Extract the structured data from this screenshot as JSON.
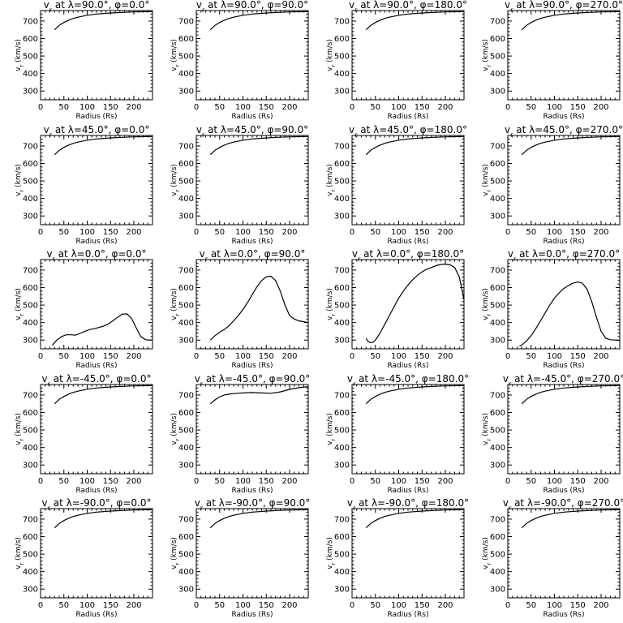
{
  "chart_data": {
    "type": "line",
    "xlabel": "Radius (Rs)",
    "ylabel": "v_r (km/s)",
    "xlim": [
      0,
      240
    ],
    "ylim": [
      250,
      760
    ],
    "xticks": [
      0,
      50,
      100,
      150,
      200
    ],
    "yticks": [
      300,
      400,
      500,
      600,
      700
    ],
    "grid": false,
    "panels": [
      {
        "title": "v_r at λ=90.0°, φ=0.0°",
        "x": [
          30,
          40,
          50,
          60,
          70,
          80,
          100,
          120,
          150,
          180,
          200,
          240
        ],
        "y": [
          650,
          675,
          692,
          705,
          715,
          722,
          733,
          740,
          746,
          750,
          752,
          754
        ]
      },
      {
        "title": "v_r at λ=90.0°, φ=90.0°",
        "x": [
          30,
          40,
          50,
          60,
          70,
          80,
          100,
          120,
          150,
          180,
          200,
          240
        ],
        "y": [
          650,
          675,
          692,
          705,
          715,
          722,
          733,
          740,
          746,
          750,
          752,
          754
        ]
      },
      {
        "title": "v_r at λ=90.0°, φ=180.0°",
        "x": [
          30,
          40,
          50,
          60,
          70,
          80,
          100,
          120,
          150,
          180,
          200,
          240
        ],
        "y": [
          650,
          675,
          692,
          705,
          715,
          722,
          733,
          740,
          746,
          750,
          752,
          754
        ]
      },
      {
        "title": "v_r at λ=90.0°, φ=270.0°",
        "x": [
          30,
          40,
          50,
          60,
          70,
          80,
          100,
          120,
          150,
          180,
          200,
          240
        ],
        "y": [
          650,
          675,
          692,
          705,
          715,
          722,
          733,
          740,
          746,
          750,
          752,
          754
        ]
      },
      {
        "title": "v_r at λ=45.0°, φ=0.0°",
        "x": [
          30,
          40,
          50,
          60,
          70,
          80,
          100,
          120,
          150,
          180,
          200,
          240
        ],
        "y": [
          650,
          675,
          692,
          705,
          715,
          722,
          733,
          740,
          746,
          750,
          752,
          754
        ]
      },
      {
        "title": "v_r at λ=45.0°, φ=90.0°",
        "x": [
          30,
          40,
          50,
          60,
          70,
          80,
          100,
          120,
          150,
          180,
          200,
          240
        ],
        "y": [
          650,
          675,
          692,
          705,
          715,
          722,
          733,
          740,
          746,
          750,
          752,
          754
        ]
      },
      {
        "title": "v_r at λ=45.0°, φ=180.0°",
        "x": [
          30,
          40,
          50,
          60,
          70,
          80,
          100,
          120,
          150,
          180,
          200,
          240
        ],
        "y": [
          650,
          675,
          692,
          705,
          715,
          722,
          733,
          740,
          746,
          750,
          752,
          754
        ]
      },
      {
        "title": "v_r at λ=45.0°, φ=270.0°",
        "x": [
          30,
          40,
          50,
          60,
          70,
          80,
          100,
          120,
          150,
          180,
          200,
          240
        ],
        "y": [
          650,
          675,
          692,
          705,
          715,
          722,
          733,
          740,
          746,
          750,
          752,
          754
        ]
      },
      {
        "title": "v_r at λ=0.0°, φ=0.0°",
        "x": [
          25,
          35,
          45,
          55,
          65,
          75,
          85,
          95,
          105,
          115,
          125,
          135,
          145,
          155,
          165,
          175,
          185,
          195,
          205,
          215,
          225,
          235,
          240
        ],
        "y": [
          270,
          300,
          320,
          330,
          330,
          328,
          338,
          350,
          360,
          365,
          372,
          380,
          392,
          410,
          430,
          448,
          450,
          425,
          370,
          320,
          302,
          300,
          300
        ]
      },
      {
        "title": "v_r at λ=0.0°, φ=90.0°",
        "x": [
          30,
          40,
          50,
          60,
          70,
          80,
          90,
          100,
          110,
          120,
          130,
          140,
          150,
          160,
          170,
          180,
          190,
          200,
          210,
          220,
          230,
          240
        ],
        "y": [
          300,
          325,
          345,
          360,
          382,
          410,
          440,
          475,
          515,
          560,
          605,
          640,
          662,
          665,
          640,
          580,
          500,
          440,
          420,
          410,
          405,
          400
        ]
      },
      {
        "title": "v_r at λ=0.0°, φ=180.0°",
        "x": [
          30,
          35,
          40,
          45,
          50,
          60,
          70,
          80,
          90,
          100,
          110,
          120,
          130,
          140,
          150,
          160,
          170,
          180,
          190,
          200,
          210,
          220,
          230,
          240
        ],
        "y": [
          310,
          290,
          285,
          287,
          300,
          340,
          390,
          440,
          490,
          540,
          580,
          615,
          645,
          670,
          690,
          705,
          715,
          725,
          732,
          734,
          730,
          715,
          660,
          530
        ]
      },
      {
        "title": "v_r at λ=0.0°, φ=270.0°",
        "x": [
          25,
          30,
          40,
          50,
          60,
          70,
          80,
          90,
          100,
          110,
          120,
          130,
          140,
          150,
          160,
          170,
          180,
          190,
          200,
          210,
          220,
          230,
          240
        ],
        "y": [
          265,
          272,
          295,
          325,
          365,
          410,
          455,
          500,
          540,
          570,
          595,
          612,
          625,
          632,
          625,
          590,
          520,
          430,
          350,
          310,
          302,
          300,
          298
        ]
      },
      {
        "title": "v_r at λ=-45.0°, φ=0.0°",
        "x": [
          30,
          40,
          50,
          60,
          70,
          80,
          100,
          120,
          150,
          180,
          200,
          240
        ],
        "y": [
          650,
          675,
          692,
          705,
          715,
          722,
          733,
          740,
          746,
          750,
          752,
          754
        ]
      },
      {
        "title": "v_r at λ=-45.0°, φ=90.0°",
        "x": [
          30,
          40,
          50,
          60,
          70,
          80,
          90,
          100,
          120,
          140,
          160,
          180,
          200,
          220,
          240
        ],
        "y": [
          650,
          672,
          690,
          700,
          705,
          708,
          710,
          712,
          714,
          712,
          710,
          718,
          732,
          742,
          748
        ]
      },
      {
        "title": "v_r at λ=-45.0°, φ=180.0°",
        "x": [
          30,
          40,
          50,
          60,
          70,
          80,
          100,
          120,
          150,
          180,
          200,
          240
        ],
        "y": [
          650,
          675,
          692,
          705,
          715,
          722,
          733,
          740,
          746,
          750,
          752,
          754
        ]
      },
      {
        "title": "v_r at λ=-45.0°, φ=270.0°",
        "x": [
          30,
          40,
          50,
          60,
          70,
          80,
          100,
          120,
          150,
          180,
          200,
          240
        ],
        "y": [
          650,
          675,
          692,
          705,
          715,
          722,
          733,
          740,
          746,
          750,
          752,
          754
        ]
      },
      {
        "title": "v_r at λ=-90.0°, φ=0.0°",
        "x": [
          30,
          40,
          50,
          60,
          70,
          80,
          100,
          120,
          150,
          180,
          200,
          240
        ],
        "y": [
          650,
          675,
          692,
          705,
          715,
          722,
          733,
          740,
          746,
          750,
          752,
          754
        ]
      },
      {
        "title": "v_r at λ=-90.0°, φ=90.0°",
        "x": [
          30,
          40,
          50,
          60,
          70,
          80,
          100,
          120,
          150,
          180,
          200,
          240
        ],
        "y": [
          650,
          675,
          692,
          705,
          715,
          722,
          733,
          740,
          746,
          750,
          752,
          754
        ]
      },
      {
        "title": "v_r at λ=-90.0°, φ=180.0°",
        "x": [
          30,
          40,
          50,
          60,
          70,
          80,
          100,
          120,
          150,
          180,
          200,
          240
        ],
        "y": [
          650,
          675,
          692,
          705,
          715,
          722,
          733,
          740,
          746,
          750,
          752,
          754
        ]
      },
      {
        "title": "v_r at λ=-90.0°, φ=270.0°",
        "x": [
          30,
          40,
          50,
          60,
          70,
          80,
          100,
          120,
          150,
          180,
          200,
          240
        ],
        "y": [
          650,
          675,
          692,
          705,
          715,
          722,
          733,
          740,
          746,
          750,
          752,
          754
        ]
      }
    ]
  }
}
